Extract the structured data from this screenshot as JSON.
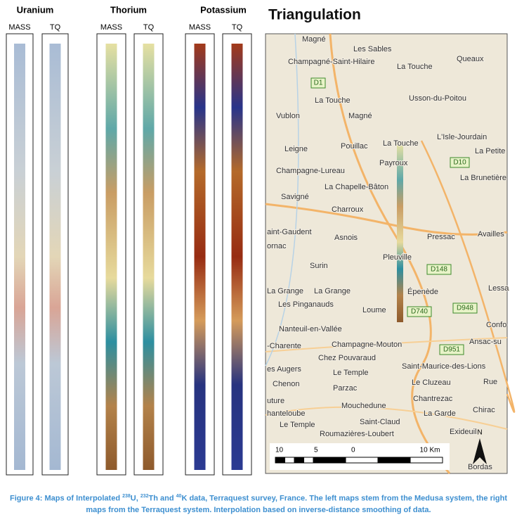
{
  "panels": [
    {
      "title": "Uranium",
      "columns": [
        "MASS",
        "TQ"
      ]
    },
    {
      "title": "Thorium",
      "columns": [
        "MASS",
        "TQ"
      ]
    },
    {
      "title": "Potassium",
      "columns": [
        "MASS",
        "TQ"
      ]
    }
  ],
  "map": {
    "title": "Triangulation",
    "places": [
      "Magné",
      "Les Sables",
      "Champagné-Saint-Hilaire",
      "La Touche",
      "Queaux",
      "La Touche",
      "Usson-du-Poitou",
      "Vublon",
      "Magné",
      "L'Isle-Jourdain",
      "Leigne",
      "Pouillac",
      "La Touche",
      "La Petite",
      "Payroux",
      "La Brunetière",
      "Champagne-Lureau",
      "La Chapelle-Bâton",
      "Savigné",
      "Charroux",
      "aint-Gaudent",
      "Asnois",
      "Pressac",
      "Availles",
      "ornac",
      "Pleuville",
      "Surin",
      "La Grange",
      "La Grange",
      "Les Pinganauds",
      "Épenède",
      "Lessa",
      "Loume",
      "Confo",
      "Nanteuil-en-Vallée",
      "-Charente",
      "Champagne-Mouton",
      "Ansac-su",
      "Chez Pouvaraud",
      "es Augers",
      "Le Temple",
      "Saint-Maurice-des-Lions",
      "Chenon",
      "Parzac",
      "Le Cluzeau",
      "Rue",
      "Chantrezac",
      "uture",
      "Mouchedune",
      "hanteloube",
      "La Garde",
      "Chirac",
      "Le Temple",
      "Saint-Claud",
      "Exideuil",
      "Roumazières-Loubert",
      "Bordas"
    ],
    "roads": [
      "D1",
      "D10",
      "D148",
      "D948",
      "D740",
      "D951"
    ],
    "scale": [
      "10",
      "5",
      "0",
      "10 Km"
    ],
    "north": "N"
  },
  "caption": [
    "Figure 4: Maps of Interpolated ",
    "238",
    "U, ",
    "232",
    "Th and ",
    "40",
    "K data, Terraquest survey, France. The left maps stem from the Medusa system, the right maps from the Terraquest system. Interpolation based on inverse-distance smoothing of data."
  ]
}
